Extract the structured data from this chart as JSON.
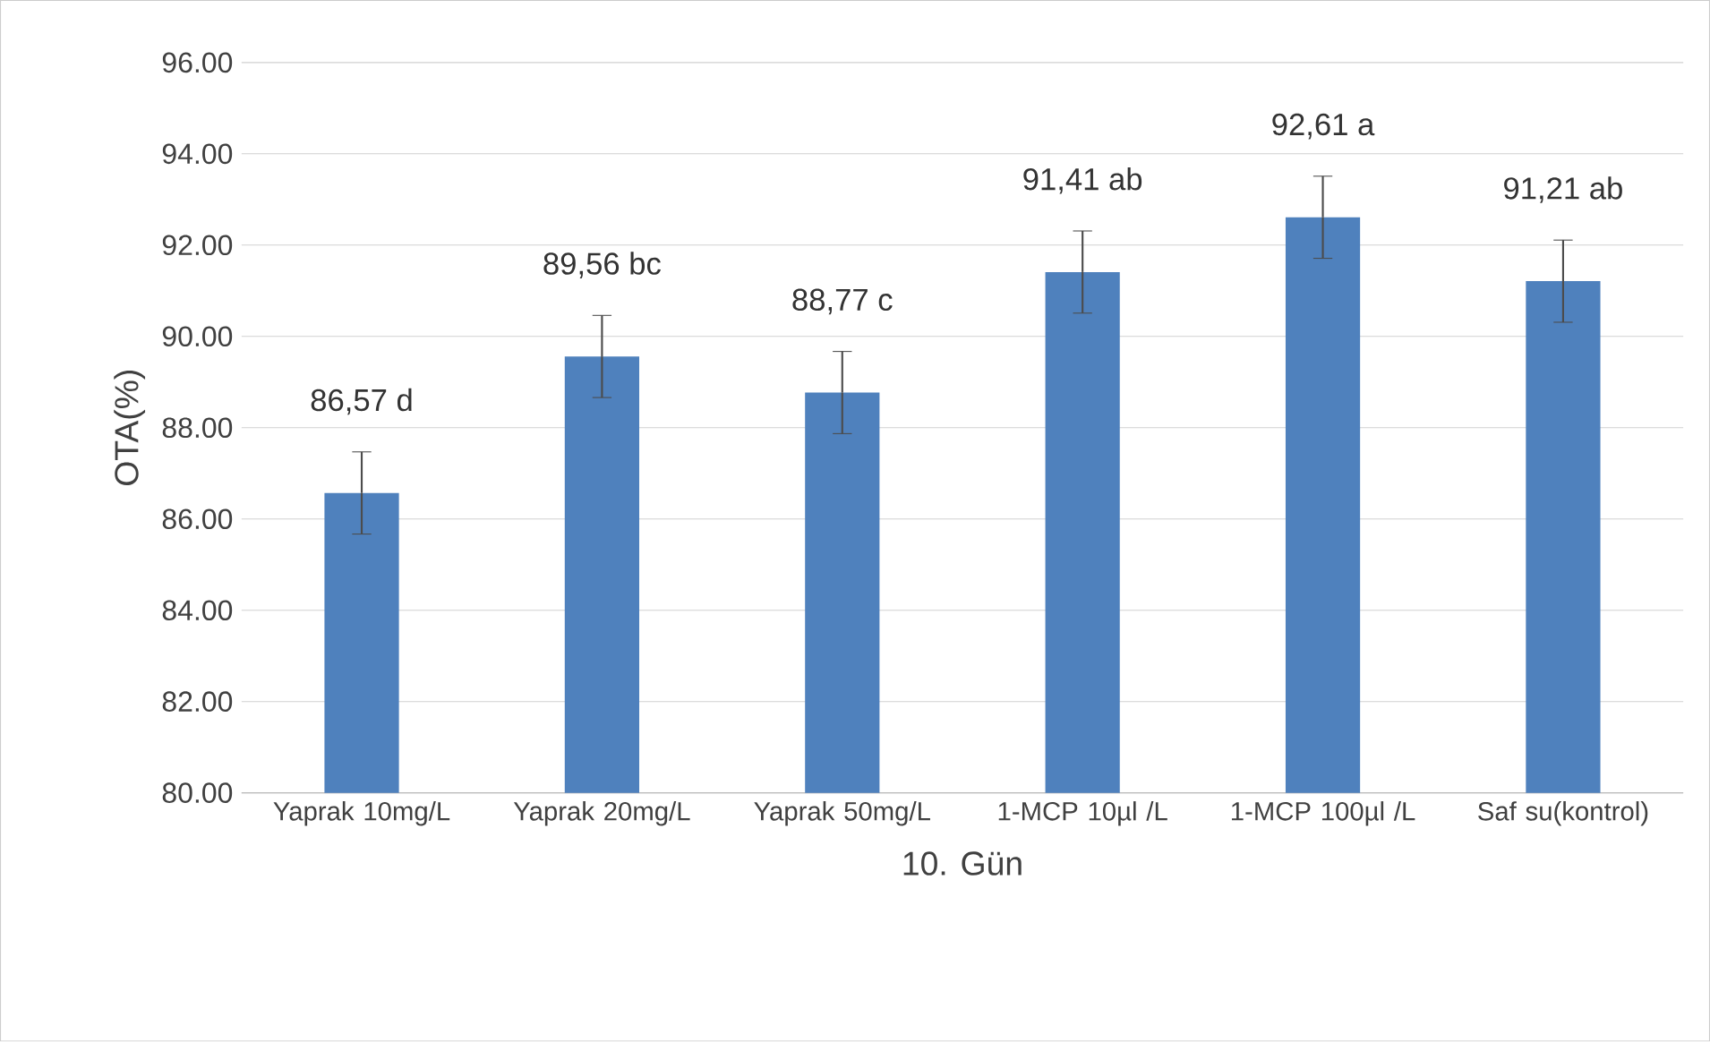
{
  "chart_data": {
    "type": "bar",
    "categories": [
      "Yaprak 10mg/L",
      "Yaprak 20mg/L",
      "Yaprak 50mg/L",
      "1-MCP 10µl /L",
      "1-MCP 100µl /L",
      "Saf su(kontrol)"
    ],
    "values": [
      86.57,
      89.56,
      88.77,
      91.41,
      92.61,
      91.21
    ],
    "errors": [
      0.9,
      0.9,
      0.9,
      0.9,
      0.9,
      0.9
    ],
    "value_labels": [
      "86,57 d",
      "89,56 bc",
      "88,77 c",
      "91,41 ab",
      "92,61 a",
      "91,21 ab"
    ],
    "color": "#4f81bd",
    "xlabel": "10. Gün",
    "ylabel": "OTA(%)",
    "ylim": [
      80,
      96
    ],
    "yticks": [
      {
        "value": 80,
        "label": "80.00"
      },
      {
        "value": 82,
        "label": "82.00"
      },
      {
        "value": 84,
        "label": "84.00"
      },
      {
        "value": 86,
        "label": "86.00"
      },
      {
        "value": 88,
        "label": "88.00"
      },
      {
        "value": 90,
        "label": "90.00"
      },
      {
        "value": 92,
        "label": "92.00"
      },
      {
        "value": 94,
        "label": "94.00"
      },
      {
        "value": 96,
        "label": "96.00"
      }
    ],
    "grid": "y"
  }
}
